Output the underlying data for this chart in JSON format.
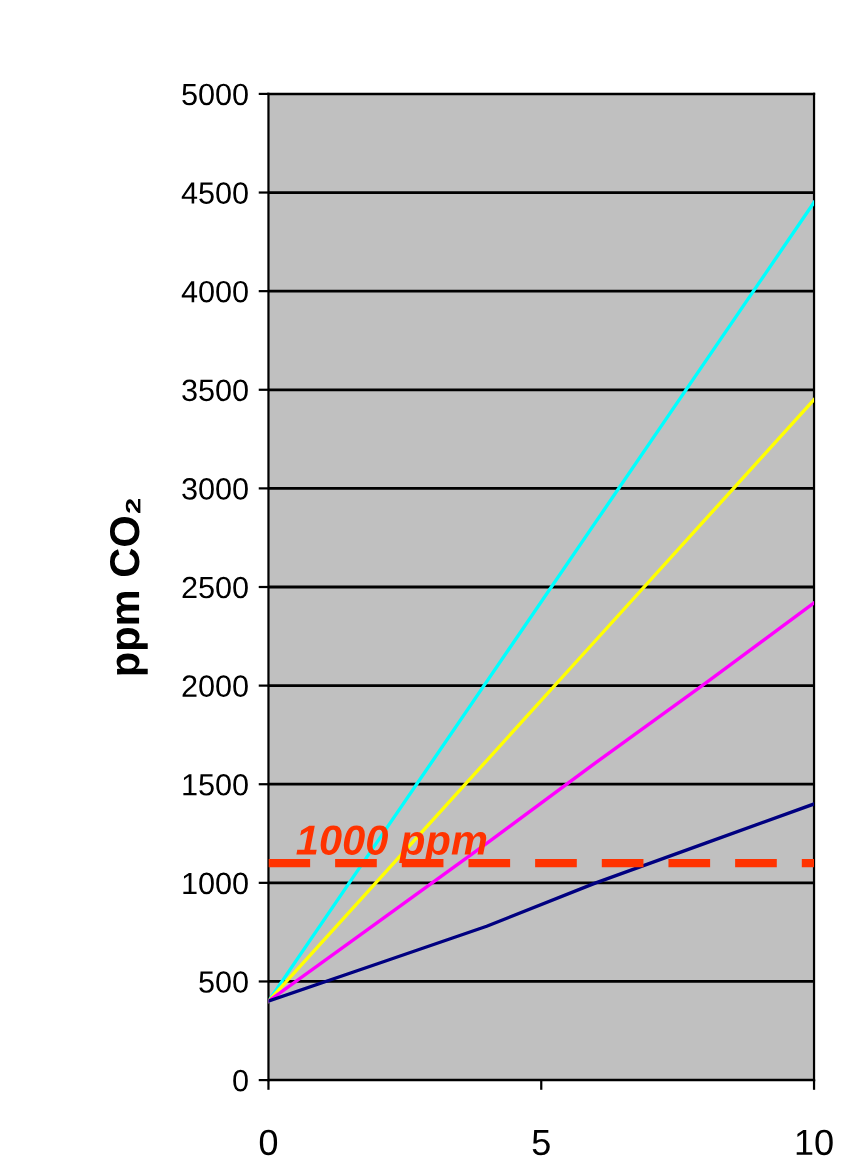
{
  "chart_data": {
    "type": "line",
    "ylabel": "ppm CO₂",
    "x": [
      0,
      2,
      4,
      6,
      8,
      10
    ],
    "series": [
      {
        "color": "#00ffff",
        "values": [
          400,
          1210,
          2020,
          2830,
          3640,
          4450
        ]
      },
      {
        "color": "#ffff00",
        "values": [
          400,
          1010,
          1620,
          2230,
          2840,
          3450
        ]
      },
      {
        "color": "#ff00ff",
        "values": [
          400,
          800,
          1200,
          1610,
          2010,
          2420
        ]
      },
      {
        "color": "#000080",
        "values": [
          400,
          590,
          780,
          1000,
          1200,
          1400
        ]
      }
    ],
    "xlim": [
      0,
      10
    ],
    "xticks": [
      0,
      5,
      10
    ],
    "ylim": [
      0,
      5000
    ],
    "yticks": [
      0,
      500,
      1000,
      1500,
      2000,
      2500,
      3000,
      3500,
      4000,
      4500,
      5000
    ],
    "grid": "y",
    "legend": false,
    "marker": "none",
    "line_style": "solid",
    "ref_lines": [
      {
        "axis": "y",
        "value": 1100,
        "label": "1000 ppm",
        "color": "#ff3300",
        "line_style": "dashed"
      }
    ]
  }
}
